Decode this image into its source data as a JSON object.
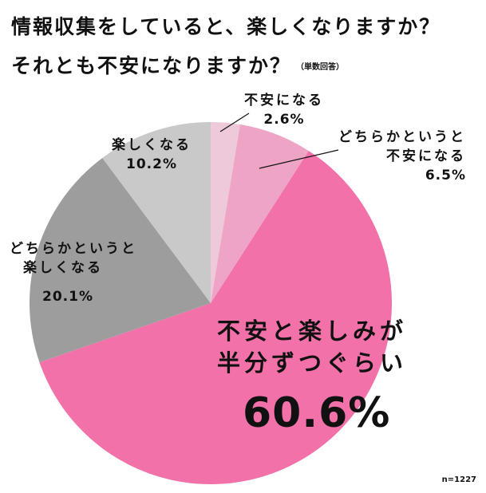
{
  "title": {
    "line1": "情報収集をしていると、楽しくなりますか？",
    "line2": "それとも不安になりますか？",
    "note": "（単数回答）"
  },
  "sample_size": "n=1227",
  "colors": {
    "anxious": "#EEC9DA",
    "somewhat_anxious": "#EEA5C5",
    "half_half": "#F271A9",
    "somewhat_fun": "#9D9D9D",
    "fun": "#C9C9C9"
  },
  "labels": {
    "anxious": {
      "line1": "不安になる",
      "value": "2.6%"
    },
    "somewhat_anxious": {
      "line1": "どちらかというと",
      "line2": "不安になる",
      "value": "6.5%"
    },
    "half_half": {
      "line1": "不安と楽しみが",
      "line2": "半分ずつぐらい",
      "value": "60.6%"
    },
    "somewhat_fun": {
      "line1": "どちらかというと",
      "line2": "楽しくなる",
      "value": "20.1%"
    },
    "fun": {
      "line1": "楽しくなる",
      "value": "10.2%"
    }
  },
  "chart_data": {
    "type": "pie",
    "title": "情報収集をしていると、楽しくなりますか？それとも不安になりますか？（単数回答）",
    "categories": [
      "不安になる",
      "どちらかというと不安になる",
      "不安と楽しみが半分ずつぐらい",
      "どちらかというと楽しくなる",
      "楽しくなる"
    ],
    "values": [
      2.6,
      6.5,
      60.6,
      20.1,
      10.2
    ],
    "unit": "%",
    "start_angle": "12 o'clock",
    "direction": "clockwise",
    "colors": [
      "#EEC9DA",
      "#EEA5C5",
      "#F271A9",
      "#9D9D9D",
      "#C9C9C9"
    ],
    "n": 1227,
    "legend": "none (direct labels)"
  }
}
